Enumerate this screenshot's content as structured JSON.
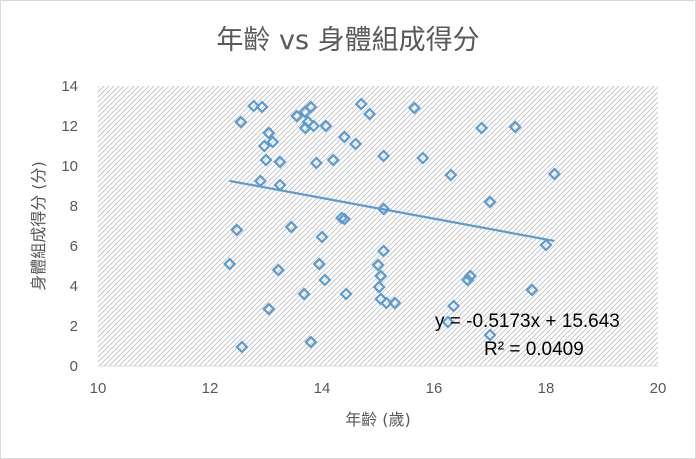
{
  "chart_data": {
    "type": "scatter",
    "title": "年齡 vs 身體組成得分",
    "xlabel": "年齡 (歲)",
    "ylabel": "身體組成得分 (分)",
    "xlim": [
      10,
      20
    ],
    "ylim": [
      0,
      14
    ],
    "x_ticks": [
      "10",
      "12",
      "14",
      "16",
      "18",
      "20"
    ],
    "y_ticks": [
      "0",
      "2",
      "4",
      "6",
      "8",
      "10",
      "12",
      "14"
    ],
    "grid": false,
    "legend": "none",
    "colors": {
      "marker": "#5b9bd5",
      "trendline": "#5b9bd5",
      "axis": "#d9d9d9"
    },
    "points": [
      [
        12.78,
        13.0
      ],
      [
        12.93,
        12.95
      ],
      [
        12.55,
        12.2
      ],
      [
        13.05,
        11.65
      ],
      [
        13.12,
        11.2
      ],
      [
        12.97,
        11.0
      ],
      [
        13.0,
        10.3
      ],
      [
        13.25,
        10.2
      ],
      [
        12.9,
        9.25
      ],
      [
        13.25,
        9.05
      ],
      [
        12.48,
        6.8
      ],
      [
        12.35,
        5.1
      ],
      [
        13.22,
        4.8
      ],
      [
        13.05,
        2.85
      ],
      [
        12.57,
        0.95
      ],
      [
        13.45,
        6.95
      ],
      [
        13.55,
        12.5
      ],
      [
        13.7,
        12.7
      ],
      [
        13.8,
        12.95
      ],
      [
        13.75,
        12.2
      ],
      [
        13.7,
        11.9
      ],
      [
        13.85,
        12.0
      ],
      [
        14.07,
        12.0
      ],
      [
        13.9,
        10.15
      ],
      [
        14.2,
        10.3
      ],
      [
        14.4,
        11.45
      ],
      [
        14.6,
        11.1
      ],
      [
        14.7,
        13.1
      ],
      [
        14.85,
        12.6
      ],
      [
        15.65,
        12.9
      ],
      [
        15.1,
        10.5
      ],
      [
        15.8,
        10.4
      ],
      [
        14.35,
        7.4
      ],
      [
        14.4,
        7.35
      ],
      [
        14.0,
        6.45
      ],
      [
        15.1,
        7.85
      ],
      [
        15.1,
        5.75
      ],
      [
        13.95,
        5.1
      ],
      [
        14.05,
        4.3
      ],
      [
        13.68,
        3.6
      ],
      [
        14.43,
        3.6
      ],
      [
        13.8,
        1.2
      ],
      [
        15.0,
        5.05
      ],
      [
        15.05,
        4.5
      ],
      [
        15.02,
        3.95
      ],
      [
        15.05,
        3.35
      ],
      [
        15.15,
        3.15
      ],
      [
        15.3,
        3.15
      ],
      [
        16.3,
        9.55
      ],
      [
        16.85,
        11.9
      ],
      [
        17.45,
        11.95
      ],
      [
        17.0,
        8.2
      ],
      [
        18.15,
        9.6
      ],
      [
        18.0,
        6.05
      ],
      [
        16.6,
        4.3
      ],
      [
        16.65,
        4.5
      ],
      [
        17.75,
        3.8
      ],
      [
        16.35,
        3.0
      ],
      [
        16.25,
        2.2
      ],
      [
        17.0,
        1.55
      ]
    ],
    "trendline": {
      "slope": -0.5173,
      "intercept": 15.643,
      "x_range": [
        12.35,
        18.15
      ]
    },
    "equation": "y = -0.5173x + 15.643",
    "r_squared": "R² = 0.0409"
  }
}
